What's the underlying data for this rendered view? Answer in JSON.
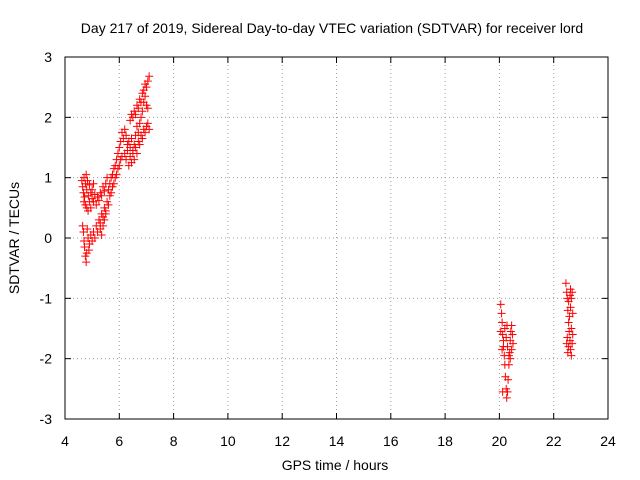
{
  "chart_data": {
    "type": "scatter",
    "title": "Day 217 of 2019, Sidereal Day-to-day VTEC variation (SDTVAR) for receiver lord",
    "xlabel": "GPS time / hours",
    "ylabel": "SDTVAR / TECUs",
    "xlim": [
      4,
      24
    ],
    "ylim": [
      -3,
      3
    ],
    "xticks": [
      "4",
      "6",
      "8",
      "10",
      "12",
      "14",
      "16",
      "18",
      "20",
      "22",
      "24"
    ],
    "yticks": [
      "-3",
      "-2",
      "-1",
      "0",
      "1",
      "2",
      "3"
    ],
    "grid": true,
    "marker": "plus",
    "marker_color": "#ff0000",
    "series": [
      {
        "name": "lord",
        "points": [
          [
            4.62,
            0.95
          ],
          [
            4.65,
            0.85
          ],
          [
            4.68,
            0.75
          ],
          [
            4.7,
            1.0
          ],
          [
            4.72,
            0.68
          ],
          [
            4.75,
            0.9
          ],
          [
            4.78,
            1.05
          ],
          [
            4.8,
            0.8
          ],
          [
            4.83,
            0.95
          ],
          [
            4.86,
            0.7
          ],
          [
            4.9,
            0.88
          ],
          [
            4.95,
            0.75
          ],
          [
            5.0,
            0.65
          ],
          [
            5.05,
            0.6
          ],
          [
            5.1,
            0.72
          ],
          [
            5.15,
            0.55
          ],
          [
            5.2,
            0.68
          ],
          [
            5.25,
            0.62
          ],
          [
            5.3,
            0.75
          ],
          [
            5.35,
            0.7
          ],
          [
            5.4,
            0.85
          ],
          [
            5.45,
            0.78
          ],
          [
            5.5,
            0.9
          ],
          [
            5.55,
            1.0
          ],
          [
            4.7,
            0.6
          ],
          [
            4.75,
            0.55
          ],
          [
            4.8,
            0.5
          ],
          [
            4.85,
            0.45
          ],
          [
            4.9,
            0.6
          ],
          [
            4.95,
            0.5
          ],
          [
            5.0,
            0.8
          ],
          [
            5.05,
            0.9
          ],
          [
            4.65,
            0.2
          ],
          [
            4.68,
            0.1
          ],
          [
            4.7,
            -0.05
          ],
          [
            4.72,
            -0.15
          ],
          [
            4.75,
            -0.3
          ],
          [
            4.78,
            -0.4
          ],
          [
            4.8,
            -0.25
          ],
          [
            4.82,
            0.15
          ],
          [
            4.85,
            0.0
          ],
          [
            4.88,
            -0.2
          ],
          [
            4.9,
            -0.1
          ],
          [
            4.95,
            0.05
          ],
          [
            5.0,
            -0.05
          ],
          [
            5.05,
            0.1
          ],
          [
            5.1,
            0.0
          ],
          [
            5.15,
            0.2
          ],
          [
            5.2,
            0.1
          ],
          [
            5.25,
            0.3
          ],
          [
            5.3,
            0.25
          ],
          [
            5.35,
            0.4
          ],
          [
            5.4,
            0.35
          ],
          [
            5.45,
            0.5
          ],
          [
            5.5,
            0.45
          ],
          [
            5.55,
            0.6
          ],
          [
            5.6,
            0.55
          ],
          [
            5.65,
            0.7
          ],
          [
            5.7,
            0.75
          ],
          [
            5.75,
            0.85
          ],
          [
            5.8,
            0.9
          ],
          [
            5.85,
            1.0
          ],
          [
            5.9,
            1.05
          ],
          [
            5.95,
            1.15
          ],
          [
            6.0,
            1.2
          ],
          [
            6.05,
            1.3
          ],
          [
            6.1,
            1.35
          ],
          [
            5.6,
            0.8
          ],
          [
            5.65,
            0.9
          ],
          [
            5.7,
            1.0
          ],
          [
            5.75,
            1.05
          ],
          [
            5.8,
            1.15
          ],
          [
            5.85,
            1.2
          ],
          [
            5.9,
            1.3
          ],
          [
            5.95,
            1.4
          ],
          [
            6.0,
            1.5
          ],
          [
            6.05,
            1.6
          ],
          [
            6.1,
            1.75
          ],
          [
            6.15,
            1.65
          ],
          [
            6.2,
            1.8
          ],
          [
            6.25,
            1.7
          ],
          [
            6.3,
            1.55
          ],
          [
            6.35,
            1.6
          ],
          [
            6.4,
            1.5
          ],
          [
            6.45,
            1.65
          ],
          [
            6.5,
            1.4
          ],
          [
            6.55,
            1.55
          ],
          [
            6.6,
            1.7
          ],
          [
            6.65,
            1.85
          ],
          [
            6.7,
            1.75
          ],
          [
            6.75,
            1.9
          ],
          [
            6.8,
            2.0
          ],
          [
            6.85,
            2.1
          ],
          [
            6.9,
            2.25
          ],
          [
            6.95,
            2.35
          ],
          [
            7.0,
            2.5
          ],
          [
            7.05,
            2.6
          ],
          [
            7.1,
            2.68
          ],
          [
            6.2,
            1.4
          ],
          [
            6.25,
            1.3
          ],
          [
            6.3,
            1.45
          ],
          [
            6.35,
            1.2
          ],
          [
            6.4,
            1.35
          ],
          [
            6.45,
            1.25
          ],
          [
            6.5,
            1.45
          ],
          [
            6.55,
            1.3
          ],
          [
            6.6,
            1.5
          ],
          [
            6.65,
            1.4
          ],
          [
            6.7,
            1.6
          ],
          [
            6.75,
            1.55
          ],
          [
            6.8,
            1.7
          ],
          [
            6.85,
            1.65
          ],
          [
            6.9,
            1.8
          ],
          [
            6.95,
            1.75
          ],
          [
            7.0,
            1.85
          ],
          [
            7.05,
            1.9
          ],
          [
            7.1,
            1.8
          ],
          [
            6.4,
            1.95
          ],
          [
            6.45,
            2.05
          ],
          [
            6.5,
            2.0
          ],
          [
            6.55,
            2.1
          ],
          [
            6.6,
            2.05
          ],
          [
            6.65,
            2.2
          ],
          [
            6.7,
            2.15
          ],
          [
            6.75,
            2.3
          ],
          [
            6.8,
            2.25
          ],
          [
            6.85,
            2.4
          ],
          [
            6.9,
            2.45
          ],
          [
            6.95,
            2.55
          ],
          [
            7.0,
            2.2
          ],
          [
            7.05,
            2.15
          ],
          [
            5.3,
            0.15
          ],
          [
            5.35,
            0.05
          ],
          [
            5.4,
            0.2
          ],
          [
            5.45,
            0.3
          ],
          [
            5.5,
            0.4
          ],
          [
            20.05,
            -1.1
          ],
          [
            20.08,
            -1.25
          ],
          [
            20.1,
            -1.4
          ],
          [
            20.12,
            -1.6
          ],
          [
            20.15,
            -1.8
          ],
          [
            20.18,
            -1.95
          ],
          [
            20.2,
            -2.1
          ],
          [
            20.22,
            -2.3
          ],
          [
            20.25,
            -2.5
          ],
          [
            20.27,
            -2.65
          ],
          [
            20.3,
            -2.55
          ],
          [
            20.32,
            -2.35
          ],
          [
            20.35,
            -2.1
          ],
          [
            20.38,
            -1.9
          ],
          [
            20.4,
            -1.7
          ],
          [
            20.42,
            -1.55
          ],
          [
            20.45,
            -1.45
          ],
          [
            20.48,
            -1.6
          ],
          [
            20.5,
            -1.75
          ],
          [
            20.1,
            -1.85
          ],
          [
            20.15,
            -1.7
          ],
          [
            20.2,
            -1.5
          ],
          [
            20.25,
            -1.65
          ],
          [
            20.3,
            -1.8
          ],
          [
            20.35,
            -1.95
          ],
          [
            20.4,
            -2.0
          ],
          [
            20.45,
            -1.85
          ],
          [
            20.05,
            -1.55
          ],
          [
            20.12,
            -2.55
          ],
          [
            20.28,
            -1.45
          ],
          [
            22.45,
            -0.75
          ],
          [
            22.48,
            -0.9
          ],
          [
            22.5,
            -1.0
          ],
          [
            22.52,
            -1.2
          ],
          [
            22.55,
            -1.4
          ],
          [
            22.57,
            -1.55
          ],
          [
            22.6,
            -1.7
          ],
          [
            22.62,
            -1.85
          ],
          [
            22.65,
            -1.95
          ],
          [
            22.68,
            -1.75
          ],
          [
            22.7,
            -1.6
          ],
          [
            22.55,
            -1.05
          ],
          [
            22.6,
            -0.95
          ],
          [
            22.62,
            -0.85
          ],
          [
            22.65,
            -1.0
          ],
          [
            22.68,
            -0.9
          ],
          [
            22.5,
            -1.65
          ],
          [
            22.55,
            -1.8
          ],
          [
            22.58,
            -1.3
          ],
          [
            22.62,
            -1.15
          ],
          [
            22.48,
            -1.75
          ],
          [
            22.52,
            -1.9
          ],
          [
            22.65,
            -1.5
          ],
          [
            22.7,
            -1.25
          ]
        ]
      }
    ]
  }
}
